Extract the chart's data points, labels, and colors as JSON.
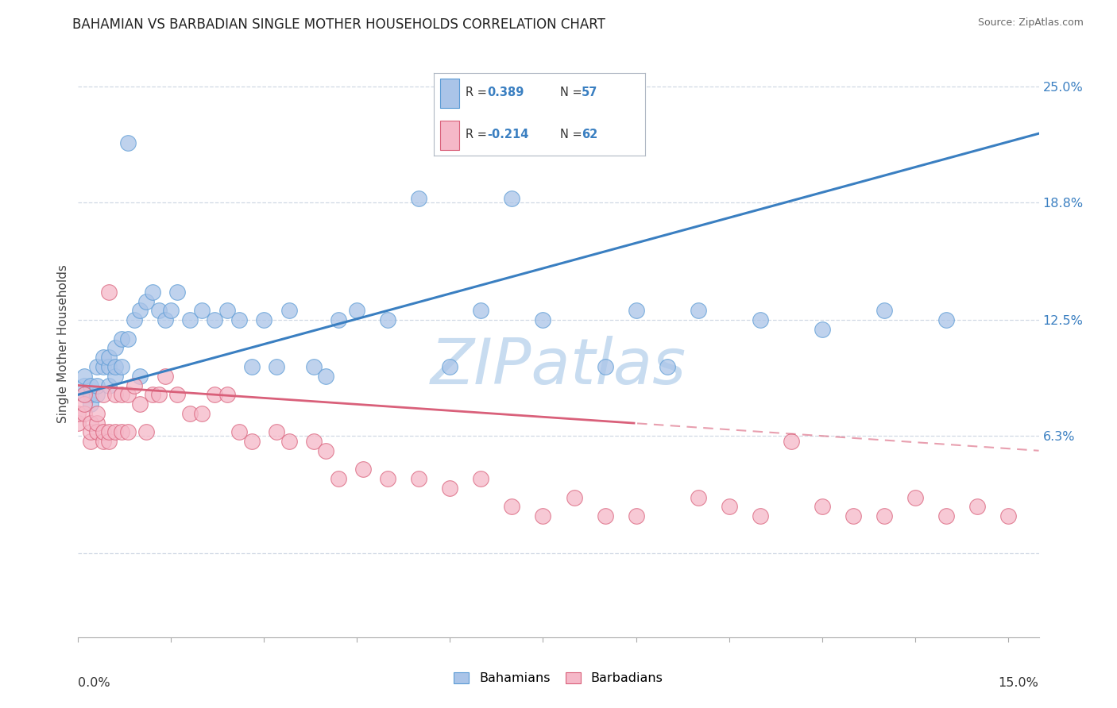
{
  "title": "BAHAMIAN VS BARBADIAN SINGLE MOTHER HOUSEHOLDS CORRELATION CHART",
  "source": "Source: ZipAtlas.com",
  "ylabel": "Single Mother Households",
  "y_tick_vals": [
    0.0,
    0.063,
    0.125,
    0.188,
    0.25
  ],
  "y_tick_labels": [
    "",
    "6.3%",
    "12.5%",
    "18.8%",
    "25.0%"
  ],
  "x_lim": [
    0.0,
    0.155
  ],
  "y_lim": [
    -0.045,
    0.27
  ],
  "legend_label_blue": "Bahamians",
  "legend_label_pink": "Barbadians",
  "blue_color": "#aac4e8",
  "pink_color": "#f5b8c8",
  "blue_edge": "#5b9bd5",
  "pink_edge": "#d9607a",
  "trend_blue": "#3a7fc1",
  "trend_pink": "#d9607a",
  "watermark_color": "#c8dcf0",
  "grid_color": "#d0d8e4",
  "legend_r_text": "R = ",
  "legend_r_blue_val": "0.389",
  "legend_n_blue_val": "57",
  "legend_r_pink_val": "-0.214",
  "legend_n_pink_val": "62",
  "blue_x": [
    0.001,
    0.001,
    0.001,
    0.002,
    0.002,
    0.002,
    0.003,
    0.003,
    0.003,
    0.004,
    0.004,
    0.005,
    0.005,
    0.005,
    0.006,
    0.006,
    0.006,
    0.007,
    0.007,
    0.008,
    0.008,
    0.009,
    0.01,
    0.01,
    0.011,
    0.012,
    0.013,
    0.014,
    0.015,
    0.016,
    0.018,
    0.02,
    0.022,
    0.024,
    0.026,
    0.028,
    0.03,
    0.032,
    0.034,
    0.038,
    0.04,
    0.042,
    0.045,
    0.05,
    0.055,
    0.06,
    0.065,
    0.07,
    0.075,
    0.085,
    0.09,
    0.095,
    0.1,
    0.11,
    0.12,
    0.13,
    0.14
  ],
  "blue_y": [
    0.085,
    0.09,
    0.095,
    0.08,
    0.085,
    0.09,
    0.085,
    0.09,
    0.1,
    0.1,
    0.105,
    0.09,
    0.1,
    0.105,
    0.095,
    0.1,
    0.11,
    0.1,
    0.115,
    0.115,
    0.22,
    0.125,
    0.095,
    0.13,
    0.135,
    0.14,
    0.13,
    0.125,
    0.13,
    0.14,
    0.125,
    0.13,
    0.125,
    0.13,
    0.125,
    0.1,
    0.125,
    0.1,
    0.13,
    0.1,
    0.095,
    0.125,
    0.13,
    0.125,
    0.19,
    0.1,
    0.13,
    0.19,
    0.125,
    0.1,
    0.13,
    0.1,
    0.13,
    0.125,
    0.12,
    0.13,
    0.125
  ],
  "pink_x": [
    0.0,
    0.0,
    0.001,
    0.001,
    0.001,
    0.002,
    0.002,
    0.002,
    0.003,
    0.003,
    0.003,
    0.004,
    0.004,
    0.004,
    0.005,
    0.005,
    0.005,
    0.006,
    0.006,
    0.007,
    0.007,
    0.008,
    0.008,
    0.009,
    0.01,
    0.011,
    0.012,
    0.013,
    0.014,
    0.016,
    0.018,
    0.02,
    0.022,
    0.024,
    0.026,
    0.028,
    0.032,
    0.034,
    0.038,
    0.04,
    0.042,
    0.046,
    0.05,
    0.055,
    0.06,
    0.065,
    0.07,
    0.075,
    0.08,
    0.085,
    0.09,
    0.1,
    0.105,
    0.11,
    0.115,
    0.12,
    0.125,
    0.13,
    0.135,
    0.14,
    0.145,
    0.15
  ],
  "pink_y": [
    0.07,
    0.075,
    0.075,
    0.08,
    0.085,
    0.06,
    0.065,
    0.07,
    0.065,
    0.07,
    0.075,
    0.06,
    0.065,
    0.085,
    0.06,
    0.065,
    0.14,
    0.065,
    0.085,
    0.065,
    0.085,
    0.065,
    0.085,
    0.09,
    0.08,
    0.065,
    0.085,
    0.085,
    0.095,
    0.085,
    0.075,
    0.075,
    0.085,
    0.085,
    0.065,
    0.06,
    0.065,
    0.06,
    0.06,
    0.055,
    0.04,
    0.045,
    0.04,
    0.04,
    0.035,
    0.04,
    0.025,
    0.02,
    0.03,
    0.02,
    0.02,
    0.03,
    0.025,
    0.02,
    0.06,
    0.025,
    0.02,
    0.02,
    0.03,
    0.02,
    0.025,
    0.02
  ]
}
